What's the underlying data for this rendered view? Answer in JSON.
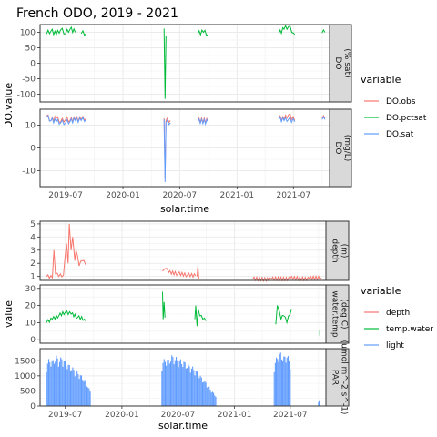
{
  "figure": {
    "title": "French ODO, 2019 - 2021"
  },
  "chart_data": [
    {
      "type": "line",
      "title": "French ODO, 2019 - 2021",
      "xlabel": "solar.time",
      "ylabel": "DO.value",
      "x_ticks": [
        "2019-07",
        "2020-01",
        "2020-07",
        "2021-01",
        "2021-07"
      ],
      "legend": {
        "title": "variable",
        "placement": "right",
        "entries": [
          "DO.obs",
          "DO.pctsat",
          "DO.sat"
        ]
      },
      "panels": [
        {
          "strip": [
            "DO",
            "(% sat)"
          ],
          "ylim": [
            -125,
            125
          ],
          "y_ticks": [
            100,
            50,
            0,
            -50,
            -100
          ],
          "series": [
            {
              "name": "DO.pctsat",
              "color": "#00BA38",
              "segments": [
                {
                  "x": [
                    "2019-05-01",
                    "2019-05-15",
                    "2019-06-01",
                    "2019-06-15",
                    "2019-07-01",
                    "2019-07-15",
                    "2019-08-01"
                  ],
                  "y": [
                    95,
                    104,
                    92,
                    108,
                    96,
                    110,
                    100
                  ]
                },
                {
                  "x": [
                    "2019-08-20",
                    "2019-09-05"
                  ],
                  "y": [
                    96,
                    96
                  ]
                },
                {
                  "x": [
                    "2020-05-12",
                    "2020-05-15",
                    "2020-05-18"
                  ],
                  "y": [
                    112,
                    -115,
                    88
                  ]
                },
                {
                  "x": [
                    "2020-08-28",
                    "2020-09-15",
                    "2020-09-30"
                  ],
                  "y": [
                    95,
                    100,
                    93
                  ]
                },
                {
                  "x": [
                    "2021-05-15",
                    "2021-06-01",
                    "2021-06-15",
                    "2021-07-01",
                    "2021-07-05"
                  ],
                  "y": [
                    95,
                    110,
                    118,
                    98,
                    93
                  ]
                },
                {
                  "x": [
                    "2021-10-01",
                    "2021-10-10"
                  ],
                  "y": [
                    98,
                    100
                  ]
                }
              ]
            }
          ]
        },
        {
          "strip": [
            "DO",
            "(mg/L)"
          ],
          "ylim": [
            -17,
            17
          ],
          "y_ticks": [
            10,
            0,
            -10
          ],
          "series": [
            {
              "name": "DO.obs",
              "color": "#F8766D",
              "segments": [
                {
                  "x": [
                    "2019-05-01",
                    "2019-05-15",
                    "2019-06-01",
                    "2019-06-15",
                    "2019-07-01",
                    "2019-07-15",
                    "2019-08-01",
                    "2019-08-20",
                    "2019-09-05"
                  ],
                  "y": [
                    14,
                    12,
                    13,
                    11.5,
                    12.5,
                    12,
                    12.5,
                    12.5,
                    13
                  ]
                },
                {
                  "x": [
                    "2020-05-12",
                    "2020-05-15",
                    "2020-05-18",
                    "2020-06-01"
                  ],
                  "y": [
                    13,
                    -13,
                    12,
                    12
                  ]
                },
                {
                  "x": [
                    "2020-08-28",
                    "2020-09-30"
                  ],
                  "y": [
                    12,
                    12
                  ]
                },
                {
                  "x": [
                    "2021-05-15",
                    "2021-06-01",
                    "2021-06-15",
                    "2021-07-05"
                  ],
                  "y": [
                    13,
                    12.5,
                    14.5,
                    12
                  ]
                },
                {
                  "x": [
                    "2021-10-01",
                    "2021-10-10"
                  ],
                  "y": [
                    13,
                    13
                  ]
                }
              ]
            },
            {
              "name": "DO.sat",
              "color": "#619CFF",
              "segments": [
                {
                  "x": [
                    "2019-05-01",
                    "2019-05-15",
                    "2019-06-01",
                    "2019-06-15",
                    "2019-07-01",
                    "2019-07-15",
                    "2019-08-01",
                    "2019-08-20",
                    "2019-09-05"
                  ],
                  "y": [
                    13.5,
                    12,
                    11.5,
                    11,
                    11,
                    11.5,
                    12,
                    12,
                    12.5
                  ]
                },
                {
                  "x": [
                    "2020-05-12",
                    "2020-05-15",
                    "2020-05-18",
                    "2020-06-01"
                  ],
                  "y": [
                    12.5,
                    -15,
                    11,
                    11
                  ]
                },
                {
                  "x": [
                    "2020-08-28",
                    "2020-09-30"
                  ],
                  "y": [
                    11.5,
                    11.5
                  ]
                },
                {
                  "x": [
                    "2021-05-15",
                    "2021-06-01",
                    "2021-06-15",
                    "2021-07-05"
                  ],
                  "y": [
                    12.5,
                    12,
                    12.5,
                    11.5
                  ]
                },
                {
                  "x": [
                    "2021-10-01",
                    "2021-10-10"
                  ],
                  "y": [
                    12.5,
                    12.5
                  ]
                }
              ]
            }
          ]
        }
      ]
    },
    {
      "type": "line",
      "xlabel": "solar.time",
      "ylabel": "value",
      "x_ticks": [
        "2019-07",
        "2020-01",
        "2020-07",
        "2021-01",
        "2021-07"
      ],
      "legend": {
        "title": "variable",
        "placement": "right",
        "entries": [
          "depth",
          "temp.water",
          "light"
        ]
      },
      "panels": [
        {
          "strip": [
            "depth",
            "(m)"
          ],
          "ylim": [
            0.7,
            5.2
          ],
          "y_ticks": [
            5,
            4,
            3,
            2,
            1
          ],
          "series": [
            {
              "name": "depth",
              "color": "#F8766D",
              "segments": [
                {
                  "x": [
                    "2019-05-01",
                    "2019-05-20",
                    "2019-05-25",
                    "2019-05-30",
                    "2019-06-10",
                    "2019-06-25",
                    "2019-07-05",
                    "2019-07-10",
                    "2019-07-14",
                    "2019-07-20",
                    "2019-07-25",
                    "2019-08-01",
                    "2019-08-05",
                    "2019-08-15",
                    "2019-08-25",
                    "2019-09-05"
                  ],
                  "y": [
                    1.0,
                    0.9,
                    3.0,
                    1.2,
                    1.0,
                    1.1,
                    3.5,
                    2.0,
                    5.0,
                    3.0,
                    4.0,
                    2.2,
                    3.0,
                    1.8,
                    2.2,
                    1.9
                  ]
                },
                {
                  "x": [
                    "2020-05-12",
                    "2020-05-20",
                    "2020-06-01",
                    "2020-07-01",
                    "2020-08-01",
                    "2020-08-28"
                  ],
                  "y": [
                    1.4,
                    1.6,
                    1.3,
                    1.2,
                    1.1,
                    1.05
                  ]
                },
                {
                  "x": [
                    "2020-09-01",
                    "2020-09-04",
                    "2020-09-07"
                  ],
                  "y": [
                    1.0,
                    1.8,
                    0.8
                  ]
                },
                {
                  "x": [
                    "2021-03-01",
                    "2021-05-01",
                    "2021-07-01",
                    "2021-09-01",
                    "2021-10-10"
                  ],
                  "y": [
                    0.8,
                    0.8,
                    0.85,
                    0.85,
                    0.9
                  ]
                }
              ]
            }
          ]
        },
        {
          "strip": [
            "water.temp",
            "(deg C)"
          ],
          "ylim": [
            -2,
            32
          ],
          "y_ticks": [
            30,
            20,
            10,
            0
          ],
          "series": [
            {
              "name": "temp.water",
              "color": "#00BA38",
              "segments": [
                {
                  "x": [
                    "2019-05-01",
                    "2019-05-20",
                    "2019-06-10",
                    "2019-07-01",
                    "2019-07-20",
                    "2019-08-10",
                    "2019-09-01",
                    "2019-09-05"
                  ],
                  "y": [
                    10,
                    12,
                    14,
                    16,
                    15,
                    13,
                    12,
                    11
                  ]
                },
                {
                  "x": [
                    "2020-05-12",
                    "2020-05-14",
                    "2020-05-17",
                    "2020-05-20"
                  ],
                  "y": [
                    28,
                    12,
                    22,
                    13
                  ]
                },
                {
                  "x": [
                    "2020-08-25",
                    "2020-08-28",
                    "2020-09-01",
                    "2020-09-05",
                    "2020-09-10",
                    "2020-09-20",
                    "2020-09-30"
                  ],
                  "y": [
                    12,
                    20,
                    8,
                    18,
                    14,
                    12,
                    11
                  ]
                },
                {
                  "x": [
                    "2021-05-15",
                    "2021-05-20",
                    "2021-06-01",
                    "2021-06-10",
                    "2021-06-20",
                    "2021-07-05"
                  ],
                  "y": [
                    9,
                    20,
                    12,
                    14,
                    10,
                    18
                  ]
                },
                {
                  "x": [
                    "2021-10-05"
                  ],
                  "y": [
                    4
                  ]
                }
              ]
            }
          ]
        },
        {
          "strip": [
            "PAR",
            "(umol m^-2 s^-1)"
          ],
          "ylim": [
            0,
            1900
          ],
          "y_ticks": [
            1500,
            1000,
            500,
            0
          ],
          "series": [
            {
              "name": "light",
              "color": "#619CFF",
              "style": "bars",
              "segments": [
                {
                  "x": [
                    "2019-05-01",
                    "2019-05-10",
                    "2019-05-20",
                    "2019-06-01",
                    "2019-06-10",
                    "2019-06-20",
                    "2019-07-01",
                    "2019-07-10",
                    "2019-07-20",
                    "2019-08-01",
                    "2019-08-10",
                    "2019-08-20",
                    "2019-09-01",
                    "2019-09-10",
                    "2019-09-20"
                  ],
                  "y": [
                    1400,
                    1600,
                    1500,
                    1700,
                    1550,
                    1650,
                    1500,
                    1400,
                    1350,
                    1200,
                    1150,
                    1050,
                    900,
                    750,
                    500
                  ]
                },
                {
                  "x": [
                    "2020-05-10",
                    "2020-05-20",
                    "2020-06-01",
                    "2020-06-10",
                    "2020-06-20",
                    "2020-07-01",
                    "2020-07-10",
                    "2020-07-20",
                    "2020-08-01",
                    "2020-08-10",
                    "2020-08-20",
                    "2020-09-01",
                    "2020-09-10",
                    "2020-09-20",
                    "2020-10-01",
                    "2020-10-10",
                    "2020-10-20",
                    "2020-11-01"
                  ],
                  "y": [
                    1450,
                    1600,
                    1550,
                    1700,
                    1650,
                    1600,
                    1550,
                    1500,
                    1400,
                    1350,
                    1300,
                    1150,
                    1050,
                    900,
                    800,
                    650,
                    500,
                    350
                  ]
                },
                {
                  "x": [
                    "2021-05-10",
                    "2021-05-20",
                    "2021-06-01",
                    "2021-06-10",
                    "2021-06-20",
                    "2021-07-01"
                  ],
                  "y": [
                    1400,
                    1700,
                    1800,
                    1650,
                    1750,
                    1500
                  ]
                },
                {
                  "x": [
                    "2021-10-01",
                    "2021-10-05"
                  ],
                  "y": [
                    150,
                    200
                  ]
                }
              ]
            }
          ]
        }
      ]
    }
  ]
}
